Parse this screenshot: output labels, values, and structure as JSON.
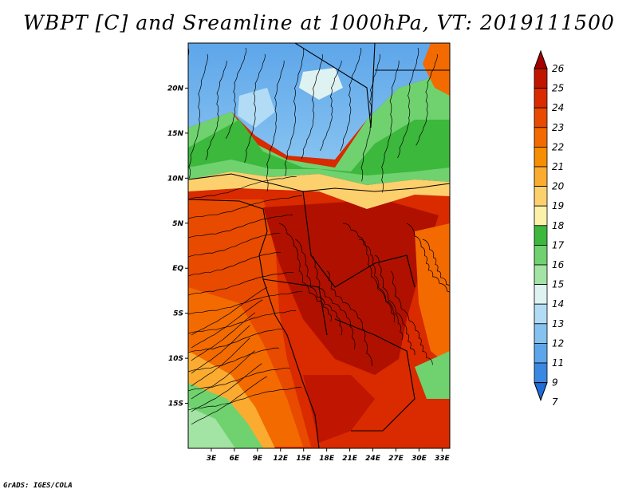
{
  "title": "WBPT [C] and Sreamline at 1000hPa, VT: 2019111500",
  "footer": "GrADS: IGES/COLA",
  "map": {
    "lat_ticks": [
      "20N",
      "15N",
      "10N",
      "5N",
      "EQ",
      "5S",
      "10S",
      "15S"
    ],
    "lat_values": [
      20,
      15,
      10,
      5,
      0,
      -5,
      -10,
      -15
    ],
    "lon_ticks": [
      "3E",
      "6E",
      "9E",
      "12E",
      "15E",
      "18E",
      "21E",
      "24E",
      "27E",
      "30E",
      "33E"
    ],
    "lon_values": [
      3,
      6,
      9,
      12,
      15,
      18,
      21,
      24,
      27,
      30,
      33
    ],
    "lon_range": [
      0,
      34
    ],
    "lat_range": [
      -20,
      25
    ]
  },
  "colorbar": {
    "levels": [
      "26",
      "25",
      "24",
      "23",
      "22",
      "21",
      "20",
      "19",
      "18",
      "17",
      "16",
      "15",
      "14",
      "13",
      "12",
      "11",
      "9",
      "7"
    ],
    "colors": [
      "#a50000",
      "#c01500",
      "#d92a00",
      "#e84a00",
      "#f26a00",
      "#f78d00",
      "#fbab30",
      "#fdd06e",
      "#fdf0a8",
      "#3cb83c",
      "#6fd26f",
      "#a3e3a3",
      "#dff2f2",
      "#b2dcf5",
      "#86c2f0",
      "#5ea6ea",
      "#3a88e2",
      "#1f6bd8"
    ]
  },
  "colors": {
    "cold": "#5ea6ea",
    "cool": "#b2dcf5",
    "green": "#6fd26f",
    "dark_green": "#3cb83c",
    "yellow": "#fdd06e",
    "orange": "#f26a00",
    "red": "#d92a00",
    "dark_red": "#b01000"
  }
}
